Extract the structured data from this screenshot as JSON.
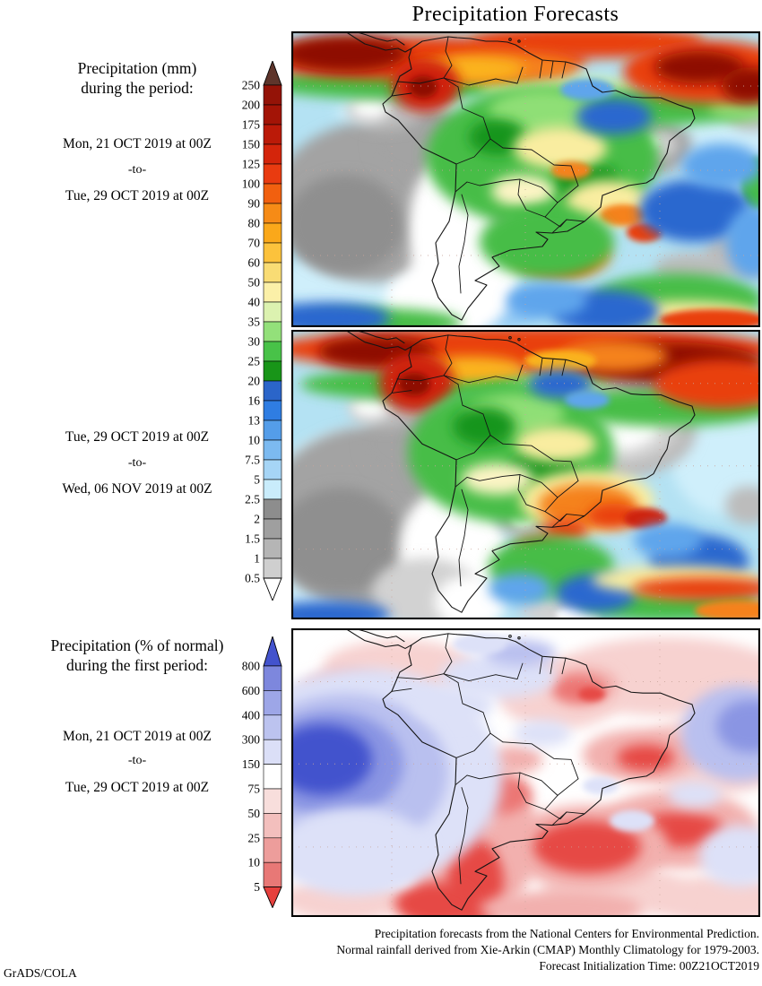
{
  "title": "Precipitation Forecasts",
  "credit": "GrADS/COLA",
  "left_labels": {
    "mm_heading": [
      "Precipitation (mm)",
      "during the period:"
    ],
    "period1": [
      "Mon, 21 OCT 2019 at 00Z",
      "-to-",
      "Tue, 29 OCT 2019 at 00Z"
    ],
    "period2": [
      "Tue, 29 OCT 2019 at 00Z",
      "-to-",
      "Wed, 06 NOV 2019 at 00Z"
    ],
    "pct_heading": [
      "Precipitation (% of normal)",
      "during the first period:"
    ],
    "period3": [
      "Mon, 21 OCT 2019 at 00Z",
      "-to-",
      "Tue, 29 OCT 2019 at 00Z"
    ]
  },
  "colorbars": {
    "mm": {
      "unit": "mm",
      "tick_labels": [
        "250",
        "200",
        "175",
        "150",
        "125",
        "100",
        "90",
        "80",
        "70",
        "60",
        "50",
        "40",
        "35",
        "30",
        "25",
        "20",
        "16",
        "13",
        "10",
        "7.5",
        "5",
        "2.5",
        "2",
        "1.5",
        "1",
        "0.5"
      ],
      "segment_colors": [
        "#941307",
        "#a31406",
        "#bb1a08",
        "#d4250b",
        "#e93b10",
        "#f1600f",
        "#f68b16",
        "#faa81a",
        "#fcc23c",
        "#f9dc74",
        "#fbf0a8",
        "#dcf2b0",
        "#93e07a",
        "#48c248",
        "#189518",
        "#2b65c9",
        "#2f7de2",
        "#549de9",
        "#7cbaf0",
        "#a6d5f6",
        "#c9ecfb",
        "#8d8d8d",
        "#9f9f9f",
        "#b5b5b5",
        "#cfcfcf"
      ],
      "arrow_top_color": "#5e352b",
      "arrow_bottom_color": "#ffffff"
    },
    "pct": {
      "unit": "% of normal",
      "tick_labels": [
        "800",
        "600",
        "400",
        "300",
        "150",
        "75",
        "50",
        "25",
        "10",
        "5"
      ],
      "segment_colors": [
        "#7d87dd",
        "#9da6e7",
        "#bcc3ef",
        "#dbdff7",
        "#ffffff",
        "#f8dedc",
        "#f3bfbd",
        "#ed9d9b",
        "#e87876"
      ],
      "arrow_top_color": "#4353cd",
      "arrow_bottom_color": "#e6403d"
    }
  },
  "footer": [
    "Precipitation forecasts from the National Centers for Environmental Prediction.",
    "Normal rainfall derived from Xie-Arkin (CMAP) Monthly Climatology for 1979-2003.",
    "Forecast Initialization Time: 00Z21OCT2019"
  ]
}
